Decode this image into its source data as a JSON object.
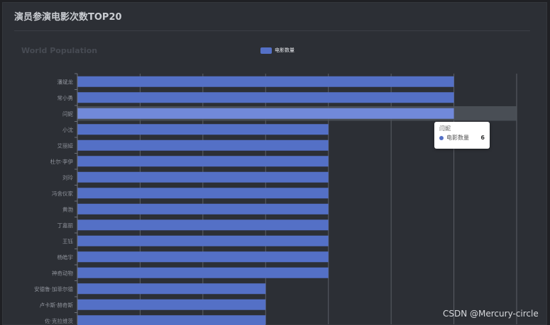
{
  "page": {
    "title": "演员参演电影次数TOP20",
    "watermark": "CSDN @Mercury-circle"
  },
  "chart_data": {
    "type": "bar",
    "orientation": "horizontal",
    "title": "World Population",
    "legend": {
      "position": "top-center",
      "entries": [
        "电影数量"
      ]
    },
    "categories": [
      "潘斌龙",
      "常小勇",
      "闫妮",
      "小沈",
      "艾丽娅",
      "杜尔·李伊",
      "刘玲",
      "冯舍仪家",
      "黄渤",
      "丁嘉丽",
      "王钰",
      "杨皓宇",
      "神奇动物",
      "安德鲁·加菲尔德",
      "卢卡斯·赫奇斯",
      "佐·克拉维茨"
    ],
    "series": [
      {
        "name": "电影数量",
        "values": [
          6,
          6,
          6,
          4,
          4,
          4,
          4,
          4,
          4,
          4,
          4,
          4,
          4,
          3,
          3,
          3
        ]
      }
    ],
    "xlim": [
      0,
      7
    ],
    "grid": true,
    "highlighted_index": 2,
    "colors": {
      "bar": "#5470c6",
      "bar_highlight": "#7189da",
      "axis_pointer": "#4f535b",
      "grid": "#5b5f67"
    },
    "tooltip": {
      "title": "闫妮",
      "series": "电影数量",
      "value": "6"
    }
  }
}
